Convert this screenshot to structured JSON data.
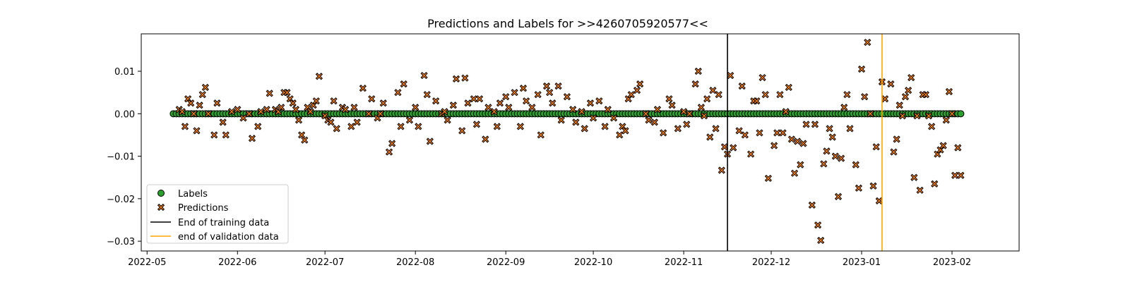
{
  "chart_data": {
    "type": "scatter",
    "title": "Predictions and Labels for >>4260705920577<<",
    "xlabel": "",
    "ylabel": "",
    "x_axis": "date",
    "xlim": [
      "2022-04-29",
      "2023-02-24"
    ],
    "ylim": [
      -0.0323,
      0.0188
    ],
    "x_ticks": [
      "2022-05",
      "2022-06",
      "2022-07",
      "2022-08",
      "2022-09",
      "2022-10",
      "2022-11",
      "2022-12",
      "2023-01",
      "2023-02"
    ],
    "y_ticks": [
      0.01,
      0.0,
      -0.01,
      -0.02,
      -0.03
    ],
    "y_tick_labels": [
      "0.01",
      "0.00",
      "−0.01",
      "−0.02",
      "−0.03"
    ],
    "grid": false,
    "legend_position": "lower left",
    "colors": {
      "labels_fill": "#2ca02c",
      "predictions_fill": "#ff7f0e",
      "marker_edge": "#000000",
      "training_line": "#000000",
      "validation_line": "#ffa500"
    },
    "series": [
      {
        "name": "Labels",
        "marker": "circle",
        "x_start": "2022-05-10",
        "x_end": "2023-02-04",
        "value": 0.0
      },
      {
        "name": "Predictions",
        "marker": "x",
        "points": [
          [
            "2022-05-12",
            0.001
          ],
          [
            "2022-05-13",
            0.0005
          ],
          [
            "2022-05-14",
            -0.003
          ],
          [
            "2022-05-15",
            0.0035
          ],
          [
            "2022-05-16",
            0.0025
          ],
          [
            "2022-05-17",
            0.0
          ],
          [
            "2022-05-18",
            -0.004
          ],
          [
            "2022-05-19",
            0.002
          ],
          [
            "2022-05-20",
            0.0045
          ],
          [
            "2022-05-21",
            0.0062
          ],
          [
            "2022-05-22",
            0.0
          ],
          [
            "2022-05-24",
            -0.005
          ],
          [
            "2022-05-25",
            0.0025
          ],
          [
            "2022-05-27",
            -0.002
          ],
          [
            "2022-05-28",
            -0.005
          ],
          [
            "2022-05-30",
            0.0005
          ],
          [
            "2022-06-01",
            0.001
          ],
          [
            "2022-06-03",
            -0.001
          ],
          [
            "2022-06-05",
            0.0
          ],
          [
            "2022-06-06",
            -0.0058
          ],
          [
            "2022-06-08",
            -0.003
          ],
          [
            "2022-06-09",
            0.0005
          ],
          [
            "2022-06-11",
            0.001
          ],
          [
            "2022-06-12",
            0.0048
          ],
          [
            "2022-06-14",
            0.001
          ],
          [
            "2022-06-15",
            0.0005
          ],
          [
            "2022-06-16",
            0.0015
          ],
          [
            "2022-06-17",
            0.005
          ],
          [
            "2022-06-18",
            0.005
          ],
          [
            "2022-06-19",
            0.0035
          ],
          [
            "2022-06-20",
            0.0025
          ],
          [
            "2022-06-21",
            0.001
          ],
          [
            "2022-06-22",
            -0.0015
          ],
          [
            "2022-06-23",
            -0.005
          ],
          [
            "2022-06-24",
            -0.0062
          ],
          [
            "2022-06-25",
            0.0015
          ],
          [
            "2022-06-26",
            0.0005
          ],
          [
            "2022-06-27",
            0.002
          ],
          [
            "2022-06-28",
            0.003
          ],
          [
            "2022-06-29",
            0.0088
          ],
          [
            "2022-07-01",
            -0.0005
          ],
          [
            "2022-07-02",
            -0.0015
          ],
          [
            "2022-07-03",
            -0.002
          ],
          [
            "2022-07-04",
            0.003
          ],
          [
            "2022-07-05",
            -0.0035
          ],
          [
            "2022-07-07",
            0.0015
          ],
          [
            "2022-07-08",
            0.001
          ],
          [
            "2022-07-10",
            -0.003
          ],
          [
            "2022-07-11",
            0.0015
          ],
          [
            "2022-07-12",
            -0.002
          ],
          [
            "2022-07-14",
            0.006
          ],
          [
            "2022-07-16",
            0.0
          ],
          [
            "2022-07-17",
            0.0035
          ],
          [
            "2022-07-19",
            -0.001
          ],
          [
            "2022-07-20",
            0.0
          ],
          [
            "2022-07-21",
            0.0025
          ],
          [
            "2022-07-23",
            -0.009
          ],
          [
            "2022-07-24",
            -0.007
          ],
          [
            "2022-07-26",
            0.005
          ],
          [
            "2022-07-27",
            -0.003
          ],
          [
            "2022-07-28",
            0.007
          ],
          [
            "2022-07-30",
            -0.0015
          ],
          [
            "2022-08-01",
            0.0015
          ],
          [
            "2022-08-02",
            -0.003
          ],
          [
            "2022-08-04",
            0.009
          ],
          [
            "2022-08-05",
            0.0045
          ],
          [
            "2022-08-06",
            -0.0065
          ],
          [
            "2022-08-08",
            0.003
          ],
          [
            "2022-08-10",
            0.0
          ],
          [
            "2022-08-11",
            0.0005
          ],
          [
            "2022-08-12",
            -0.0015
          ],
          [
            "2022-08-14",
            0.002
          ],
          [
            "2022-08-15",
            0.0082
          ],
          [
            "2022-08-17",
            -0.004
          ],
          [
            "2022-08-18",
            0.0084
          ],
          [
            "2022-08-19",
            0.0025
          ],
          [
            "2022-08-21",
            0.0035
          ],
          [
            "2022-08-22",
            -0.0025
          ],
          [
            "2022-08-23",
            0.0035
          ],
          [
            "2022-08-25",
            -0.006
          ],
          [
            "2022-08-26",
            0.0015
          ],
          [
            "2022-08-28",
            0.0005
          ],
          [
            "2022-08-29",
            -0.003
          ],
          [
            "2022-08-30",
            0.0025
          ],
          [
            "2022-09-01",
            0.004
          ],
          [
            "2022-09-02",
            0.0015
          ],
          [
            "2022-09-04",
            0.005
          ],
          [
            "2022-09-06",
            -0.003
          ],
          [
            "2022-09-07",
            0.006
          ],
          [
            "2022-09-08",
            0.003
          ],
          [
            "2022-09-10",
            0.0015
          ],
          [
            "2022-09-12",
            0.0045
          ],
          [
            "2022-09-13",
            -0.005
          ],
          [
            "2022-09-15",
            0.0065
          ],
          [
            "2022-09-16",
            0.005
          ],
          [
            "2022-09-17",
            0.0025
          ],
          [
            "2022-09-19",
            0.0065
          ],
          [
            "2022-09-20",
            -0.0015
          ],
          [
            "2022-09-22",
            0.004
          ],
          [
            "2022-09-24",
            0.001
          ],
          [
            "2022-09-25",
            -0.002
          ],
          [
            "2022-09-27",
            0.0005
          ],
          [
            "2022-09-28",
            -0.0035
          ],
          [
            "2022-09-30",
            0.0025
          ],
          [
            "2022-10-01",
            -0.001
          ],
          [
            "2022-10-03",
            0.003
          ],
          [
            "2022-10-05",
            -0.003
          ],
          [
            "2022-10-06",
            0.001
          ],
          [
            "2022-10-08",
            -0.001
          ],
          [
            "2022-10-10",
            -0.005
          ],
          [
            "2022-10-11",
            -0.003
          ],
          [
            "2022-10-12",
            -0.004
          ],
          [
            "2022-10-13",
            0.0035
          ],
          [
            "2022-10-14",
            0.0045
          ],
          [
            "2022-10-16",
            0.0055
          ],
          [
            "2022-10-17",
            0.007
          ],
          [
            "2022-10-19",
            0.0
          ],
          [
            "2022-10-20",
            -0.0015
          ],
          [
            "2022-10-22",
            -0.002
          ],
          [
            "2022-10-23",
            0.001
          ],
          [
            "2022-10-25",
            -0.0045
          ],
          [
            "2022-10-27",
            0.0035
          ],
          [
            "2022-10-28",
            0.002
          ],
          [
            "2022-10-30",
            -0.0035
          ],
          [
            "2022-11-01",
            0.0005
          ],
          [
            "2022-11-02",
            -0.0025
          ],
          [
            "2022-11-03",
            0.0
          ],
          [
            "2022-11-05",
            0.007
          ],
          [
            "2022-11-06",
            0.01
          ],
          [
            "2022-11-07",
            0.0015
          ],
          [
            "2022-11-08",
            -0.0005
          ],
          [
            "2022-11-09",
            0.0035
          ],
          [
            "2022-11-10",
            -0.0055
          ],
          [
            "2022-11-11",
            0.0055
          ],
          [
            "2022-11-12",
            -0.0035
          ],
          [
            "2022-11-13",
            0.0045
          ],
          [
            "2022-11-14",
            -0.0133
          ],
          [
            "2022-11-15",
            -0.0078
          ],
          [
            "2022-11-16",
            -0.0095
          ],
          [
            "2022-11-17",
            0.009
          ],
          [
            "2022-11-18",
            -0.008
          ],
          [
            "2022-11-20",
            -0.004
          ],
          [
            "2022-11-21",
            0.0065
          ],
          [
            "2022-11-22",
            -0.005
          ],
          [
            "2022-11-24",
            -0.0095
          ],
          [
            "2022-11-25",
            0.003
          ],
          [
            "2022-11-26",
            0.003
          ],
          [
            "2022-11-27",
            -0.0045
          ],
          [
            "2022-11-28",
            0.0085
          ],
          [
            "2022-11-29",
            0.0045
          ],
          [
            "2022-11-30",
            -0.0152
          ],
          [
            "2022-12-02",
            -0.0075
          ],
          [
            "2022-12-03",
            -0.0045
          ],
          [
            "2022-12-04",
            0.0045
          ],
          [
            "2022-12-05",
            -0.0045
          ],
          [
            "2022-12-06",
            0.0005
          ],
          [
            "2022-12-07",
            0.0062
          ],
          [
            "2022-12-08",
            -0.006
          ],
          [
            "2022-12-09",
            -0.014
          ],
          [
            "2022-12-10",
            -0.0065
          ],
          [
            "2022-12-11",
            -0.012
          ],
          [
            "2022-12-12",
            -0.007
          ],
          [
            "2022-12-13",
            -0.0025
          ],
          [
            "2022-12-15",
            -0.0215
          ],
          [
            "2022-12-16",
            -0.0025
          ],
          [
            "2022-12-17",
            -0.0262
          ],
          [
            "2022-12-18",
            -0.0298
          ],
          [
            "2022-12-19",
            -0.0118
          ],
          [
            "2022-12-20",
            -0.0088
          ],
          [
            "2022-12-21",
            -0.0035
          ],
          [
            "2022-12-22",
            -0.0055
          ],
          [
            "2022-12-23",
            -0.01
          ],
          [
            "2022-12-24",
            -0.0195
          ],
          [
            "2022-12-25",
            -0.0105
          ],
          [
            "2022-12-26",
            0.0015
          ],
          [
            "2022-12-27",
            0.0045
          ],
          [
            "2022-12-28",
            -0.0035
          ],
          [
            "2022-12-30",
            -0.012
          ],
          [
            "2022-12-31",
            -0.0175
          ],
          [
            "2023-01-01",
            0.0105
          ],
          [
            "2023-01-02",
            0.004
          ],
          [
            "2023-01-03",
            0.0168
          ],
          [
            "2023-01-04",
            0.0
          ],
          [
            "2023-01-05",
            -0.017
          ],
          [
            "2023-01-06",
            -0.0078
          ],
          [
            "2023-01-07",
            -0.0205
          ],
          [
            "2023-01-08",
            0.0075
          ],
          [
            "2023-01-09",
            0.0035
          ],
          [
            "2023-01-11",
            0.007
          ],
          [
            "2023-01-12",
            -0.009
          ],
          [
            "2023-01-13",
            -0.006
          ],
          [
            "2023-01-14",
            0.002
          ],
          [
            "2023-01-15",
            -0.0005
          ],
          [
            "2023-01-16",
            0.004
          ],
          [
            "2023-01-17",
            0.0055
          ],
          [
            "2023-01-18",
            0.0085
          ],
          [
            "2023-01-19",
            -0.015
          ],
          [
            "2023-01-20",
            -0.0005
          ],
          [
            "2023-01-21",
            -0.018
          ],
          [
            "2023-01-22",
            0.0045
          ],
          [
            "2023-01-23",
            0.0045
          ],
          [
            "2023-01-24",
            -0.0005
          ],
          [
            "2023-01-25",
            -0.003
          ],
          [
            "2023-01-26",
            -0.0165
          ],
          [
            "2023-01-27",
            -0.0095
          ],
          [
            "2023-01-28",
            -0.0085
          ],
          [
            "2023-01-29",
            -0.0075
          ],
          [
            "2023-01-30",
            -0.0015
          ],
          [
            "2023-01-31",
            0.0052
          ],
          [
            "2023-02-01",
            0.0
          ],
          [
            "2023-02-02",
            -0.0145
          ],
          [
            "2023-02-03",
            -0.008
          ],
          [
            "2023-02-04",
            -0.0145
          ]
        ]
      }
    ],
    "vlines": [
      {
        "name": "End of training data",
        "x": "2022-11-16",
        "color": "#000000"
      },
      {
        "name": "end of validation data",
        "x": "2023-01-08",
        "color": "#ffa500"
      }
    ],
    "legend": [
      "Labels",
      "Predictions",
      "End of training data",
      "end of validation data"
    ]
  }
}
